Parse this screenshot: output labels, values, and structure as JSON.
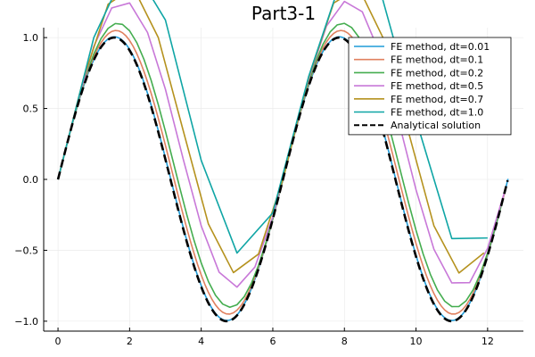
{
  "chart_data": {
    "type": "line",
    "title": "Part3-1",
    "xlabel": "",
    "ylabel": "",
    "xlim": [
      -0.4,
      13.0
    ],
    "ylim": [
      -1.07,
      1.07
    ],
    "xticks": [
      0,
      2,
      4,
      6,
      8,
      10,
      12
    ],
    "yticks": [
      -1.0,
      -0.5,
      0.0,
      0.5,
      1.0
    ],
    "xtick_labels": [
      "0",
      "2",
      "4",
      "6",
      "8",
      "10",
      "12"
    ],
    "ytick_labels": [
      "−1.0",
      "−0.5",
      "0.0",
      "0.5",
      "1.0"
    ],
    "grid": true,
    "legend_position": "top-right",
    "series": [
      {
        "name": "FE method, dt=0.01",
        "color": "#1f9bd8",
        "dash": "solid",
        "dt": 0.01,
        "t_max": 12.57
      },
      {
        "name": "FE method, dt=0.1",
        "color": "#e0815f",
        "dash": "solid",
        "dt": 0.1,
        "t_max": 12.57
      },
      {
        "name": "FE method, dt=0.2",
        "color": "#44ad4f",
        "dash": "solid",
        "dt": 0.2,
        "t_max": 12.57
      },
      {
        "name": "FE method, dt=0.5",
        "color": "#c878d8",
        "dash": "solid",
        "dt": 0.5,
        "t_max": 12.57
      },
      {
        "name": "FE method, dt=0.7",
        "color": "#b5921e",
        "dash": "solid",
        "dt": 0.7,
        "t_max": 12.57
      },
      {
        "name": "FE method, dt=1.0",
        "color": "#0fa5a5",
        "dash": "solid",
        "dt": 1.0,
        "t_max": 12.57
      },
      {
        "name": "Analytical solution",
        "color": "#000000",
        "dash": "dashed",
        "dt": 0.02,
        "t_max": 12.57
      }
    ]
  }
}
